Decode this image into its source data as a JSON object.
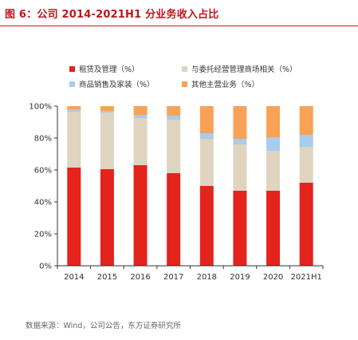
{
  "header": {
    "title": "图 6：公司 2014-2021H1 分业务收入占比",
    "source": "数据来源：Wind，公司公告，东方证券研究所"
  },
  "chart_data": {
    "type": "bar",
    "stacked": true,
    "categories": [
      "2014",
      "2015",
      "2016",
      "2017",
      "2018",
      "2019",
      "2020",
      "2021H1"
    ],
    "series": [
      {
        "name": "租赁及管理（%）",
        "color": "#e3231c",
        "values": [
          61.5,
          60.5,
          63,
          58,
          50,
          47,
          47,
          52
        ]
      },
      {
        "name": "与委托经营管理商场相关（%）",
        "color": "#ded4c0",
        "values": [
          35,
          35.5,
          29.5,
          33.5,
          29.5,
          29,
          25,
          22.5
        ]
      },
      {
        "name": "商品销售及家装（%）",
        "color": "#a8cbee",
        "values": [
          1.5,
          1,
          2,
          2.5,
          3.5,
          3.5,
          8.5,
          7.5
        ]
      },
      {
        "name": "其他主营业务（%）",
        "color": "#f7a257",
        "values": [
          2,
          3,
          5.5,
          6,
          17,
          20.5,
          19.5,
          18
        ]
      }
    ],
    "y_ticks": [
      "0%",
      "20%",
      "40%",
      "60%",
      "80%",
      "100%"
    ],
    "ylim": [
      0,
      100
    ],
    "grid": false,
    "legend_position": "top"
  }
}
